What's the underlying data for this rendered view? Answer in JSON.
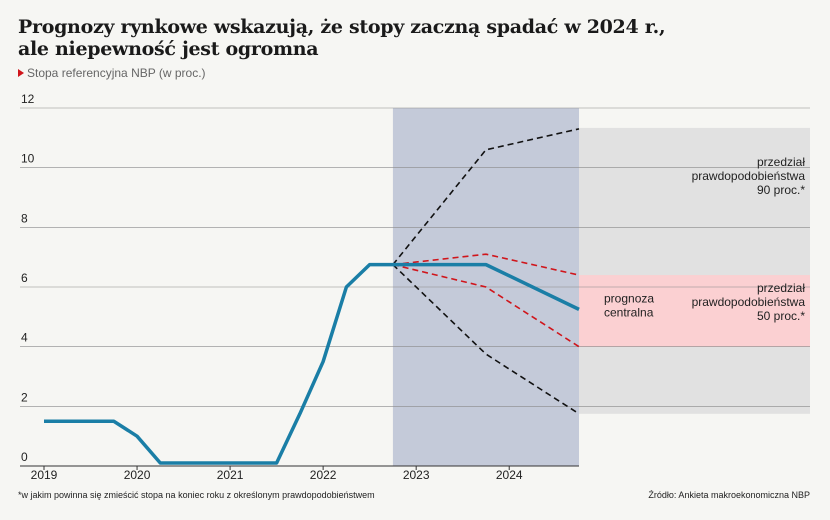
{
  "header": {
    "title_line1": "Prognozy rynkowe wskazują, że stopy zaczną spadać w 2024 r.,",
    "title_line2": "ale niepewność jest ogromna",
    "subtitle": "Stopa referencyjna NBP (w proc.)"
  },
  "footer": {
    "footnote": "*w jakim  powinna się zmieścić stopa na koniec roku z określonym prawdopodobieństwem",
    "source": "Źródło: Ankieta makroekonomiczna NBP"
  },
  "colors": {
    "background": "#f6f6f3",
    "history_line": "#1a7ea6",
    "forecast_shade": "#c4cad9",
    "band_90": "#e1e1e1",
    "band_50": "#fbd0d2",
    "dashed_90": "#111111",
    "dashed_50": "#d0151b",
    "marker": "#d0151b"
  },
  "chart_data": {
    "type": "line",
    "title": "Prognozy rynkowe wskazują, że stopy zaczną spadać w 2024 r., ale niepewność jest ogromna",
    "ylabel": "Stopa referencyjna NBP (w proc.)",
    "ylim": [
      0,
      12
    ],
    "y_ticks": [
      0,
      2,
      4,
      6,
      8,
      10,
      12
    ],
    "xlim": [
      2019.0,
      2024.75
    ],
    "x_ticks": [
      {
        "x": 2019.0,
        "label": "2019"
      },
      {
        "x": 2020.0,
        "label": "2020"
      },
      {
        "x": 2021.0,
        "label": "2021"
      },
      {
        "x": 2022.0,
        "label": "2022"
      },
      {
        "x": 2023.0,
        "label": "2023"
      },
      {
        "x": 2024.0,
        "label": "2024"
      }
    ],
    "grid": true,
    "forecast_shade": {
      "x_start": 2022.75,
      "x_end": 2024.75
    },
    "series": [
      {
        "name": "prognoza centralna",
        "style": "solid",
        "points": [
          [
            2019.0,
            1.5
          ],
          [
            2019.75,
            1.5
          ],
          [
            2020.0,
            1.0
          ],
          [
            2020.25,
            0.1
          ],
          [
            2021.5,
            0.1
          ],
          [
            2021.75,
            1.75
          ],
          [
            2022.0,
            3.5
          ],
          [
            2022.25,
            6.0
          ],
          [
            2022.5,
            6.75
          ],
          [
            2022.75,
            6.75
          ],
          [
            2023.75,
            6.75
          ],
          [
            2024.75,
            5.25
          ]
        ]
      },
      {
        "name": "",
        "style": "dashed-black",
        "points": [
          [
            2022.75,
            6.75
          ],
          [
            2023.75,
            10.6
          ],
          [
            2024.75,
            11.3
          ]
        ]
      },
      {
        "name": "",
        "style": "dashed-black",
        "points": [
          [
            2022.75,
            6.75
          ],
          [
            2023.75,
            3.75
          ],
          [
            2024.75,
            1.75
          ]
        ]
      },
      {
        "name": "",
        "style": "dashed-red",
        "points": [
          [
            2022.75,
            6.75
          ],
          [
            2023.75,
            7.1
          ],
          [
            2024.75,
            6.4
          ]
        ]
      },
      {
        "name": "",
        "style": "dashed-red",
        "points": [
          [
            2022.75,
            6.75
          ],
          [
            2023.75,
            6.0
          ],
          [
            2024.75,
            4.0
          ]
        ]
      }
    ],
    "bands": [
      {
        "label_lines": [
          "przedział",
          "prawdopodobieństwa",
          "90 proc.*"
        ],
        "y_low": 1.75,
        "y_high": 11.3
      },
      {
        "label_lines": [
          "przedział",
          "prawdopodobieństwa",
          "50 proc.*"
        ],
        "y_low": 4.0,
        "y_high": 6.4
      }
    ],
    "annotations": [
      {
        "label_lines": [
          "prognoza",
          "centralna"
        ]
      }
    ]
  }
}
